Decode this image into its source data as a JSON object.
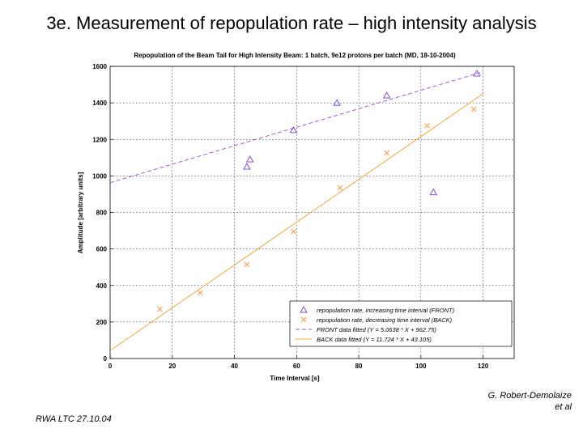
{
  "slide": {
    "title": "3e. Measurement of repopulation rate – high intensity analysis",
    "credit_line1": "G. Robert-Demolaize",
    "credit_line2": "et al",
    "footer": "RWA LTC 27.10.04"
  },
  "colors": {
    "front": "#7b3fd6",
    "back": "#ff8a2a",
    "front_fit": "#a05cd8",
    "back_fit": "#f0a840"
  },
  "chart_data": {
    "type": "scatter",
    "title": "Repopulation of the Beam Tail for High Intensity Beam: 1 batch, 9e12 protons per batch (MD, 18-10-2004)",
    "xlabel": "Time Interval [s]",
    "ylabel": "Amplitude [arbitrary units]",
    "xlim": [
      0,
      130
    ],
    "ylim": [
      0,
      1600
    ],
    "xticks": [
      0,
      20,
      40,
      60,
      80,
      100,
      120
    ],
    "yticks": [
      0,
      200,
      400,
      600,
      800,
      1000,
      1200,
      1400,
      1600
    ],
    "grid": true,
    "legend_position": "bottom-right",
    "series": [
      {
        "name": "repopulation rate, increasing time interval (FRONT)",
        "marker": "triangle",
        "x": [
          44,
          45,
          59,
          73,
          89,
          104,
          118
        ],
        "y": [
          1050,
          1090,
          1250,
          1400,
          1440,
          910,
          1560
        ]
      },
      {
        "name": "repopulation rate, decreasing time interval (BACK)",
        "marker": "x",
        "x": [
          16,
          29,
          44,
          59,
          74,
          89,
          102,
          117
        ],
        "y": [
          270,
          360,
          515,
          695,
          935,
          1125,
          1275,
          1365
        ]
      }
    ],
    "fits": [
      {
        "name": "FRONT data fitted (Y = 5.0638 * X + 962.75)",
        "slope": 5.0638,
        "intercept": 962.75,
        "x_range": [
          0,
          120
        ]
      },
      {
        "name": "BACK data fitted (Y = 11.724 * X + 43.105)",
        "slope": 11.724,
        "intercept": 43.105,
        "x_range": [
          0,
          120
        ]
      }
    ]
  }
}
